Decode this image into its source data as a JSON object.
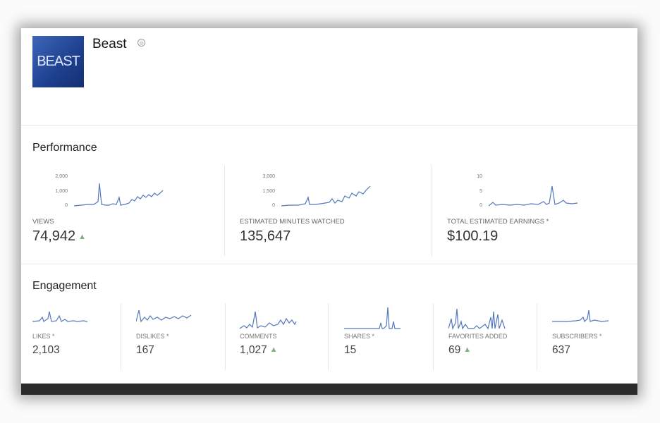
{
  "channel": {
    "name": "Beast",
    "avatar_text": "BEAST",
    "avatar_colors": [
      "#3f66b9",
      "#14306f"
    ]
  },
  "performance": {
    "title": "Performance",
    "metrics": [
      {
        "label": "VIEWS",
        "value": "74,942",
        "trend": "up",
        "ticks": [
          "2,000",
          "1,000",
          "0"
        ]
      },
      {
        "label": "ESTIMATED MINUTES WATCHED",
        "value": "135,647",
        "trend": "",
        "ticks": [
          "3,000",
          "1,500",
          "0"
        ]
      },
      {
        "label": "TOTAL ESTIMATED EARNINGS *",
        "value": "$100.19",
        "trend": "",
        "ticks": [
          "10",
          "5",
          "0"
        ]
      }
    ]
  },
  "engagement": {
    "title": "Engagement",
    "metrics": [
      {
        "label": "LIKES *",
        "value": "2,103",
        "trend": ""
      },
      {
        "label": "DISLIKES *",
        "value": "167",
        "trend": ""
      },
      {
        "label": "COMMENTS",
        "value": "1,027",
        "trend": "up"
      },
      {
        "label": "SHARES *",
        "value": "15",
        "trend": ""
      },
      {
        "label": "FAVORITES ADDED",
        "value": "69",
        "trend": "up"
      },
      {
        "label": "SUBSCRIBERS *",
        "value": "637",
        "trend": ""
      }
    ]
  },
  "colors": {
    "line": "#5577bb",
    "trend_up": "#7fb07f",
    "bottom_bar": "#2b2b2b"
  },
  "icons": {
    "verified": "verified-badge-icon",
    "trend": "up-triangle-icon"
  }
}
